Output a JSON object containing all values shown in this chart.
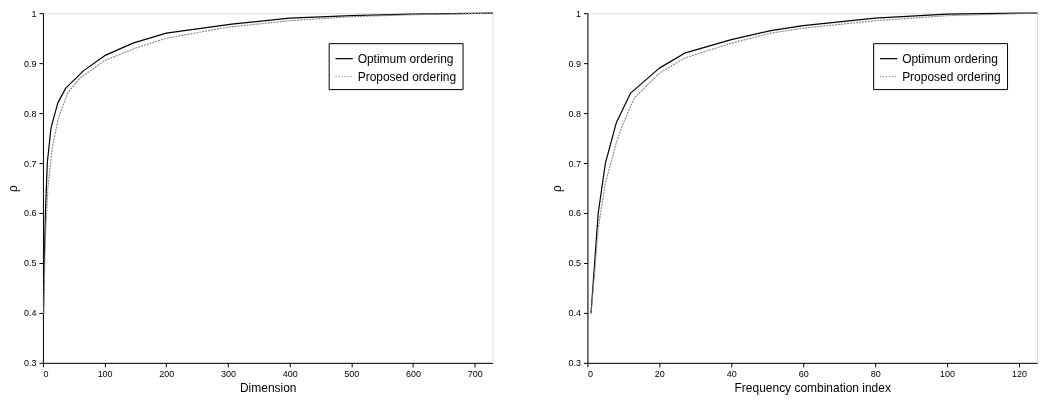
{
  "chart_data": [
    {
      "type": "line",
      "xlabel": "Dimension",
      "ylabel": "ρ",
      "xlim": [
        0,
        729
      ],
      "xticks": [
        0,
        100,
        200,
        300,
        400,
        500,
        600,
        700
      ],
      "ylim": [
        0.3,
        1
      ],
      "yticks": [
        0.3,
        0.4,
        0.5,
        0.6,
        0.7,
        0.8,
        0.9,
        1
      ],
      "legend": "top right",
      "grid": false,
      "marker": "none",
      "series": [
        {
          "name": "Optimum ordering",
          "color": "#000000",
          "line_style": "solid",
          "x": [
            1,
            2,
            4,
            7,
            13,
            24,
            37,
            66,
            100,
            146,
            200,
            306,
            400,
            500,
            600,
            729
          ],
          "values": [
            0.4,
            0.5,
            0.6,
            0.7,
            0.77,
            0.82,
            0.85,
            0.885,
            0.915,
            0.94,
            0.96,
            0.978,
            0.99,
            0.995,
            0.998,
            1.0
          ]
        },
        {
          "name": "Proposed ordering",
          "color": "#888888",
          "line_style": "dotted",
          "x": [
            1,
            4,
            8,
            15,
            25,
            40,
            60,
            100,
            150,
            200,
            300,
            400,
            500,
            600,
            729
          ],
          "values": [
            0.4,
            0.55,
            0.65,
            0.73,
            0.79,
            0.84,
            0.87,
            0.905,
            0.93,
            0.95,
            0.972,
            0.985,
            0.993,
            0.997,
            1.0
          ]
        }
      ]
    },
    {
      "type": "line",
      "xlabel": "Frequency combination index",
      "ylabel": "ρ",
      "xlim": [
        0,
        125
      ],
      "xticks": [
        0,
        20,
        40,
        60,
        80,
        100,
        120
      ],
      "ylim": [
        0.3,
        1
      ],
      "yticks": [
        0.3,
        0.4,
        0.5,
        0.6,
        0.7,
        0.8,
        0.9,
        1
      ],
      "legend": "top right",
      "grid": false,
      "marker": "none",
      "series": [
        {
          "name": "Optimum ordering",
          "color": "#000000",
          "line_style": "solid",
          "x": [
            1,
            2,
            3,
            5,
            8,
            12,
            20,
            27,
            40,
            51,
            60,
            80,
            100,
            120,
            125
          ],
          "values": [
            0.4,
            0.5,
            0.6,
            0.7,
            0.78,
            0.84,
            0.89,
            0.92,
            0.947,
            0.965,
            0.975,
            0.99,
            0.998,
            1.0,
            1.0
          ]
        },
        {
          "name": "Proposed ordering",
          "color": "#888888",
          "line_style": "dotted",
          "x": [
            1,
            2,
            3,
            5,
            8,
            10,
            13,
            20,
            27,
            40,
            51,
            60,
            80,
            100,
            125
          ],
          "values": [
            0.4,
            0.48,
            0.57,
            0.66,
            0.74,
            0.78,
            0.83,
            0.88,
            0.91,
            0.94,
            0.96,
            0.97,
            0.985,
            0.995,
            1.0
          ]
        }
      ]
    }
  ]
}
